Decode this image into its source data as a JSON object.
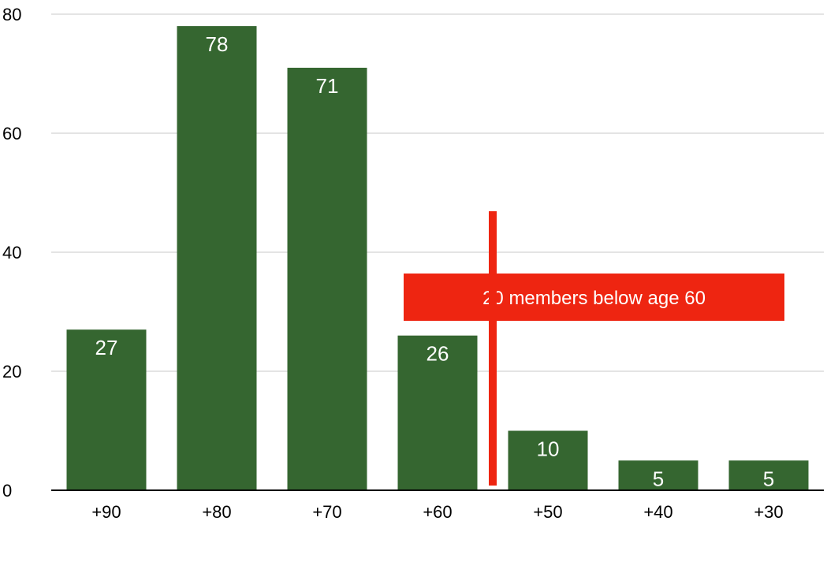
{
  "chart_data": {
    "type": "bar",
    "categories": [
      "+90",
      "+80",
      "+70",
      "+60",
      "+50",
      "+40",
      "+30"
    ],
    "values": [
      27,
      78,
      71,
      26,
      10,
      5,
      5
    ],
    "value_labels": [
      "27",
      "78",
      "71",
      "26",
      "10",
      "5",
      "5"
    ],
    "title": "",
    "xlabel": "",
    "ylabel": "",
    "ylim": [
      0,
      80
    ],
    "yticks": [
      0,
      20,
      40,
      60,
      80
    ],
    "ytick_labels": [
      "0",
      "20",
      "40",
      "60",
      "80"
    ],
    "grid": true,
    "legend": "none",
    "annotation": {
      "text": "20 members below age 60",
      "marker_between": [
        "+60",
        "+50"
      ]
    }
  },
  "colors": {
    "bar": "#356630",
    "bar_label": "#ffffff",
    "grid": "#c8c8c8",
    "axis": "#000000",
    "annotation": "#ee2511"
  }
}
